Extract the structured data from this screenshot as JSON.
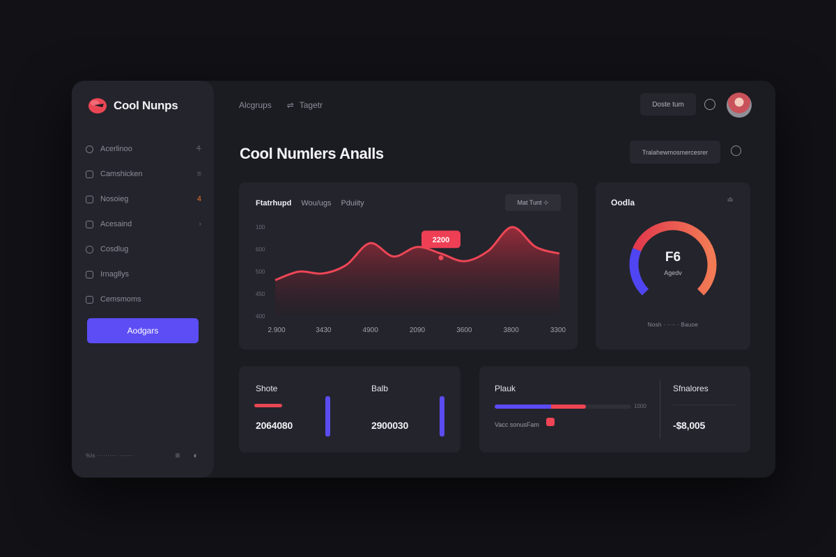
{
  "app": {
    "brand_name": "Cool Nunps"
  },
  "sidebar": {
    "items": [
      {
        "label": "Acerlinoo",
        "icon": "globe-icon",
        "trail": "Ꮞ"
      },
      {
        "label": "Camshicken",
        "icon": "grid-icon",
        "trail": "≡"
      },
      {
        "label": "Nosoieg",
        "icon": "archive-icon",
        "trail": "4"
      },
      {
        "label": "Acesaind",
        "icon": "edit-icon",
        "trail": "›"
      },
      {
        "label": "Cosdlug",
        "icon": "chat-icon",
        "trail": ""
      },
      {
        "label": "Irnagllys",
        "icon": "image-icon",
        "trail": ""
      },
      {
        "label": "Cemsmoms",
        "icon": "building-icon",
        "trail": ""
      }
    ],
    "cta_label": "Aodgars",
    "footer_text": "%ls ·········· ·······",
    "footer_menu_icon": "≡",
    "footer_globe_icon": "◐"
  },
  "topbar": {
    "crumb1": "Alcgrups",
    "crumb2_icon": "⇌",
    "crumb2": "Tagetr",
    "button_label": "Doste tum"
  },
  "page": {
    "title": "Cool Numlers Analls",
    "filter_label": "Tralahewmosmercesrer"
  },
  "chart_card": {
    "tabs": [
      "Ftatrhupd",
      "Wou/ugs",
      "Pduiity"
    ],
    "button_label": "Mat Tunt",
    "button_icon": "⊹",
    "tooltip_value": "2200"
  },
  "chart_data": {
    "type": "area",
    "title": "Ftatrhupd",
    "xlabel": "",
    "ylabel": "",
    "y_tick_labels": [
      "100",
      "600",
      "500",
      "450",
      "400"
    ],
    "x_tick_labels": [
      "2.900",
      "3430",
      "4900",
      "2090",
      "3600",
      "3800",
      "3300"
    ],
    "ylim": [
      0,
      100
    ],
    "x": [
      0,
      0.5,
      1,
      1.5,
      2,
      2.5,
      3,
      3.5,
      4,
      4.5,
      5,
      5.5,
      6
    ],
    "series": [
      {
        "name": "Ftatrhupd",
        "values": [
          38,
          47,
          45,
          54,
          77,
          63,
          73,
          66,
          58,
          69,
          94,
          73,
          66
        ]
      }
    ],
    "highlight": {
      "x": 3.5,
      "label": "2200"
    },
    "grid": false
  },
  "gauge_card": {
    "title": "Oodla",
    "menu_icon": "≐",
    "value": "F6",
    "sublabel": "Agedv",
    "legend": "Nosh · ···· · Bauoe",
    "fraction": 0.72,
    "colors": {
      "low": "#5045f2",
      "mid": "#e8434f",
      "high": "#f27b55",
      "track": "#2f2f38"
    }
  },
  "stats": {
    "left": {
      "label": "Shote",
      "value": "2064080"
    },
    "right": {
      "label": "Balb",
      "value": "2900030"
    },
    "progress": {
      "label": "Plauk",
      "caption": "Vacc sonusFam",
      "end_label": "1000",
      "fraction": 0.67
    },
    "total": {
      "label": "Sfnalores",
      "value": "-$8,005"
    }
  },
  "colors": {
    "accent": "#5c4df5",
    "red": "#ea4654",
    "bg": "#1b1b22",
    "card": "#24242c"
  }
}
